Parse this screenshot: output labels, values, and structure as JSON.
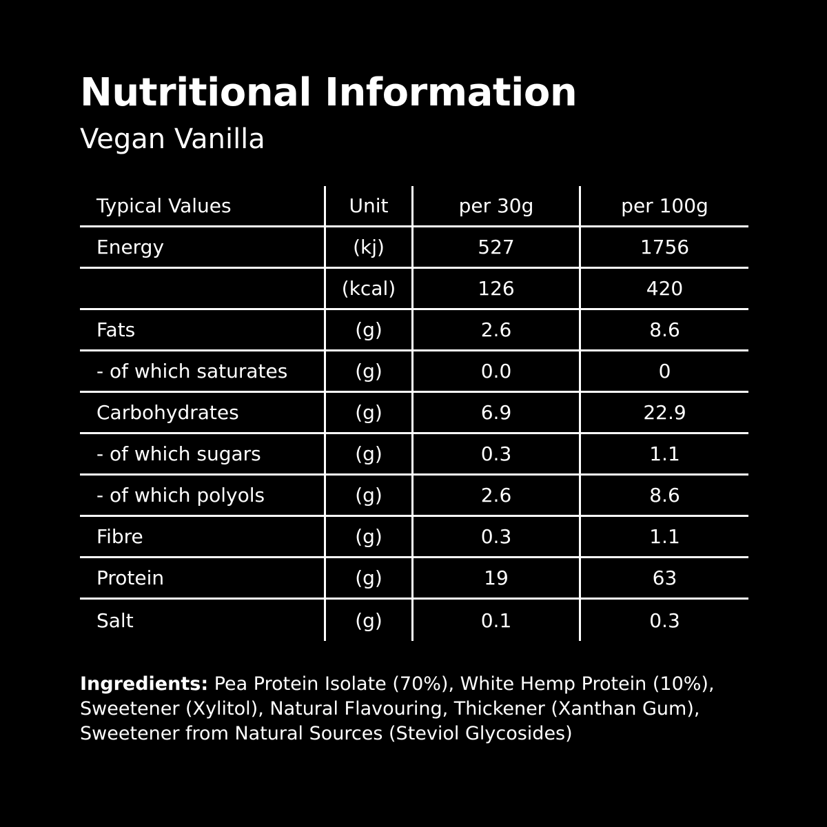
{
  "title": "Nutritional Information",
  "subtitle": "Vegan Vanilla",
  "table": {
    "headers": [
      "Typical Values",
      "Unit",
      "per 30g",
      "per 100g"
    ],
    "rows": [
      [
        "Energy",
        "(kj)",
        "527",
        "1756"
      ],
      [
        "",
        "(kcal)",
        "126",
        "420"
      ],
      [
        "Fats",
        "(g)",
        "2.6",
        "8.6"
      ],
      [
        "- of which saturates",
        "(g)",
        "0.0",
        "0"
      ],
      [
        "Carbohydrates",
        "(g)",
        "6.9",
        "22.9"
      ],
      [
        "- of which sugars",
        "(g)",
        "0.3",
        "1.1"
      ],
      [
        "- of which polyols",
        "(g)",
        "2.6",
        "8.6"
      ],
      [
        "Fibre",
        "(g)",
        "0.3",
        "1.1"
      ],
      [
        "Protein",
        "(g)",
        "19",
        "63"
      ],
      [
        "Salt",
        "(g)",
        "0.1",
        "0.3"
      ]
    ]
  },
  "ingredients": {
    "label": "Ingredients:",
    "text": " Pea Protein Isolate (70%), White Hemp Protein (10%), Sweetener (Xylitol), Natural Flavouring, Thickener (Xanthan Gum), Sweetener from Natural Sources (Steviol Glycosides)"
  },
  "colors": {
    "background": "#000000",
    "text": "#ffffff"
  }
}
